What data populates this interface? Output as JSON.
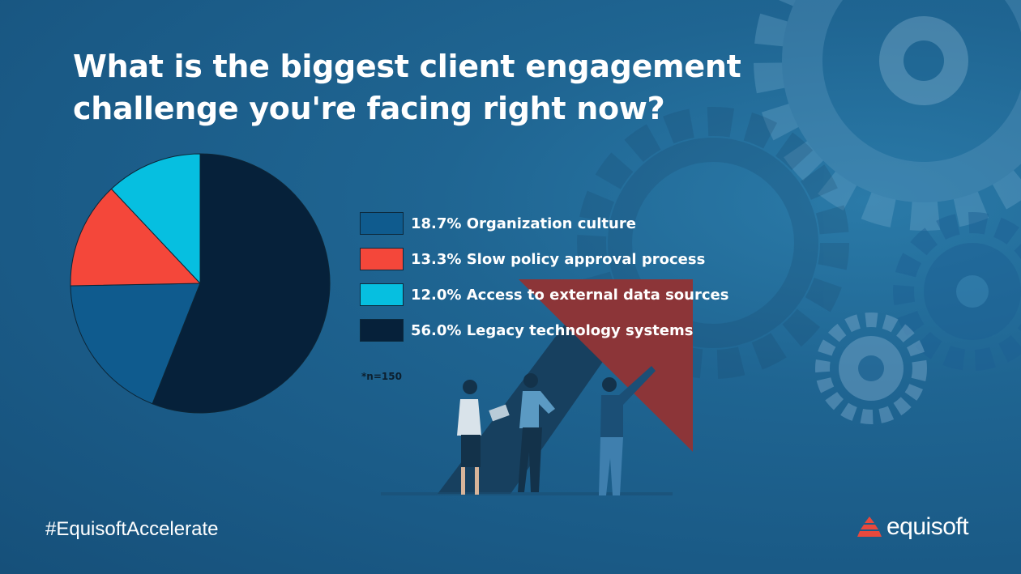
{
  "title_lines": [
    "What is the biggest client engagement",
    "challenge you're facing right now?"
  ],
  "chart_data": {
    "type": "pie",
    "title": "What is the biggest client engagement challenge you're facing right now?",
    "slices": [
      {
        "label": "Organization culture",
        "value": 18.7,
        "color": "#0f5b8e"
      },
      {
        "label": "Slow policy approval process",
        "value": 13.3,
        "color": "#f4473a"
      },
      {
        "label": "Access to external data sources",
        "value": 12.0,
        "color": "#06bfe0"
      },
      {
        "label": "Legacy technology systems",
        "value": 56.0,
        "color": "#06213a"
      }
    ],
    "legend_placement": "right"
  },
  "legend": [
    {
      "text": "18.7% Organization culture",
      "color": "#0f5b8e"
    },
    {
      "text": "13.3% Slow policy approval process",
      "color": "#f4473a"
    },
    {
      "text": "12.0% Access to external data sources",
      "color": "#06bfe0"
    },
    {
      "text": "56.0% Legacy technology systems",
      "color": "#06213a"
    }
  ],
  "note": "*n=150",
  "hashtag": "#EquisoftAccelerate",
  "brand": {
    "name": "equisoft",
    "logo_icon": "stacked-chevron-logo-icon",
    "logo_color": "#e8493d"
  }
}
